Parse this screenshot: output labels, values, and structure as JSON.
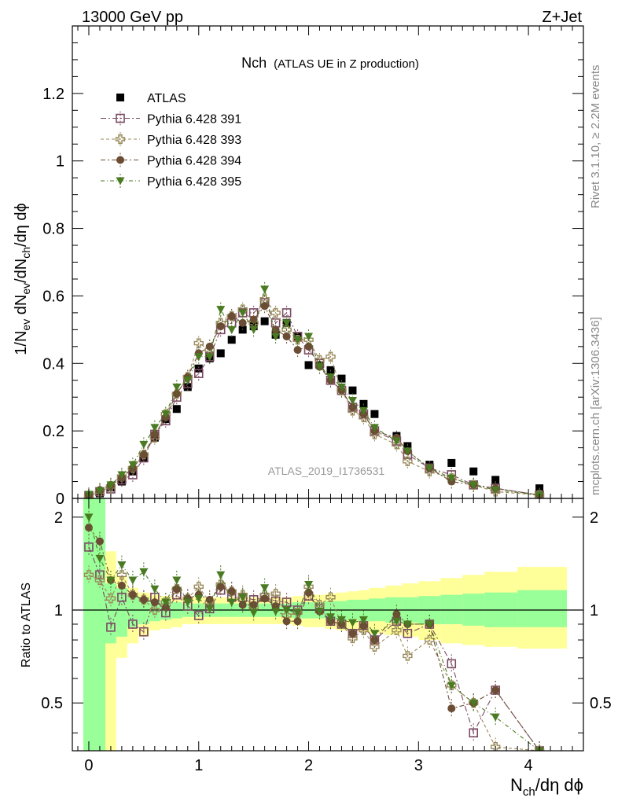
{
  "header": {
    "left": "13000 GeV pp",
    "right": "Z+Jet"
  },
  "side_labels": {
    "rivet": "Rivet 3.1.10, ≥ 2.2M events",
    "mcplots": "mcplots.cern.ch [arXiv:1306.3436]"
  },
  "chart_data": {
    "type": "scatter",
    "title_main": "Nch",
    "title_sub": "(ATLAS UE in Z production)",
    "watermark": "ATLAS_2019_I1736531",
    "xlabel": {
      "base": "N",
      "sub": "ch",
      "rest": "/dη dϕ"
    },
    "ylabel": {
      "parts": [
        "1/N",
        "ev",
        " dN",
        "ev",
        "/dN",
        "ch",
        "/dη dϕ"
      ]
    },
    "ratio_ylabel": "Ratio to ATLAS",
    "xlim": [
      -0.15,
      4.5
    ],
    "ylim": [
      0,
      1.4
    ],
    "ratio_ylim": [
      0.35,
      2.3
    ],
    "grid": false,
    "legend_position": "top-left",
    "x_ticks": [
      "0",
      "1",
      "2",
      "3",
      "4"
    ],
    "y_ticks": [
      "0",
      "0.2",
      "0.4",
      "0.6",
      "0.8",
      "1",
      "1.2"
    ],
    "ratio_ticks": [
      "0.5",
      "1",
      "2"
    ],
    "x": [
      0.0,
      0.1,
      0.2,
      0.3,
      0.4,
      0.5,
      0.6,
      0.7,
      0.8,
      0.9,
      1.0,
      1.1,
      1.2,
      1.3,
      1.4,
      1.5,
      1.6,
      1.7,
      1.8,
      1.9,
      2.0,
      2.1,
      2.2,
      2.3,
      2.4,
      2.5,
      2.6,
      2.8,
      2.9,
      3.1,
      3.3,
      3.5,
      3.7,
      4.1
    ],
    "series": [
      {
        "name": "ATLAS",
        "marker": "square-filled",
        "color": "#000000",
        "values": [
          0.005,
          0.015,
          0.032,
          0.05,
          0.08,
          0.12,
          0.18,
          0.235,
          0.265,
          0.33,
          0.385,
          0.415,
          0.43,
          0.47,
          0.5,
          0.51,
          0.525,
          0.485,
          0.52,
          0.48,
          0.395,
          0.395,
          0.38,
          0.355,
          0.32,
          0.28,
          0.25,
          0.185,
          0.155,
          0.1,
          0.105,
          0.08,
          0.055,
          0.03
        ]
      },
      {
        "name": "Pythia 6.428 391",
        "marker": "square-open",
        "color": "#7b4a63",
        "values": [
          0.008,
          0.02,
          0.028,
          0.055,
          0.07,
          0.12,
          0.19,
          0.23,
          0.3,
          0.34,
          0.37,
          0.42,
          0.5,
          0.52,
          0.55,
          0.55,
          0.58,
          0.52,
          0.55,
          0.48,
          0.44,
          0.4,
          0.35,
          0.32,
          0.27,
          0.25,
          0.2,
          0.17,
          0.13,
          0.09,
          0.07,
          0.04,
          0.03,
          0.01
        ]
      },
      {
        "name": "Pythia 6.428 393",
        "marker": "cross-open",
        "color": "#9a8a5a",
        "values": [
          0.006,
          0.02,
          0.035,
          0.065,
          0.09,
          0.13,
          0.18,
          0.25,
          0.31,
          0.36,
          0.46,
          0.44,
          0.52,
          0.54,
          0.56,
          0.52,
          0.59,
          0.55,
          0.5,
          0.47,
          0.47,
          0.41,
          0.42,
          0.32,
          0.26,
          0.24,
          0.19,
          0.16,
          0.11,
          0.08,
          0.06,
          0.04,
          0.02,
          0.01
        ]
      },
      {
        "name": "Pythia 6.428 394",
        "marker": "circle-filled",
        "color": "#6b4c34",
        "values": [
          0.01,
          0.025,
          0.04,
          0.06,
          0.09,
          0.13,
          0.19,
          0.24,
          0.31,
          0.36,
          0.43,
          0.45,
          0.51,
          0.54,
          0.52,
          0.53,
          0.57,
          0.5,
          0.48,
          0.44,
          0.45,
          0.39,
          0.35,
          0.32,
          0.27,
          0.25,
          0.2,
          0.18,
          0.14,
          0.09,
          0.05,
          0.04,
          0.03,
          0.01
        ]
      },
      {
        "name": "Pythia 6.428 395",
        "marker": "triangle-down-filled",
        "color": "#4a7a22",
        "values": [
          0.012,
          0.022,
          0.04,
          0.07,
          0.1,
          0.16,
          0.21,
          0.25,
          0.33,
          0.35,
          0.42,
          0.42,
          0.56,
          0.5,
          0.55,
          0.5,
          0.62,
          0.48,
          0.52,
          0.47,
          0.48,
          0.39,
          0.36,
          0.33,
          0.29,
          0.26,
          0.21,
          0.17,
          0.14,
          0.09,
          0.06,
          0.04,
          0.025,
          0.01
        ]
      }
    ],
    "ratio_series": [
      {
        "name": "Pythia 6.428 391",
        "values": [
          1.6,
          1.3,
          0.88,
          1.1,
          0.9,
          0.85,
          1.1,
          0.98,
          1.12,
          1.03,
          0.96,
          1.01,
          1.16,
          1.1,
          1.1,
          1.08,
          1.1,
          1.07,
          1.06,
          1.0,
          1.11,
          1.01,
          0.92,
          0.9,
          0.84,
          0.89,
          0.8,
          0.92,
          0.84,
          0.9,
          0.67,
          0.4,
          0.55,
          0.33
        ]
      },
      {
        "name": "Pythia 6.428 393",
        "values": [
          1.3,
          1.25,
          1.09,
          1.3,
          1.12,
          1.08,
          1.0,
          1.06,
          1.17,
          1.09,
          1.19,
          1.06,
          1.21,
          1.15,
          1.12,
          1.02,
          1.12,
          1.13,
          0.96,
          0.98,
          1.19,
          1.04,
          1.1,
          0.9,
          0.81,
          0.86,
          0.76,
          0.86,
          0.71,
          0.8,
          0.57,
          0.5,
          0.36,
          0.33
        ]
      },
      {
        "name": "Pythia 6.428 394",
        "values": [
          1.85,
          1.67,
          1.25,
          1.2,
          1.12,
          1.08,
          1.06,
          1.02,
          1.17,
          1.09,
          1.12,
          1.08,
          1.19,
          1.15,
          1.04,
          1.04,
          1.09,
          1.03,
          0.92,
          0.92,
          1.14,
          0.99,
          0.92,
          0.9,
          0.84,
          0.89,
          0.8,
          0.97,
          0.9,
          0.9,
          0.48,
          0.5,
          0.55,
          0.33
        ]
      },
      {
        "name": "Pythia 6.428 395",
        "values": [
          2.0,
          1.47,
          1.25,
          1.4,
          1.25,
          1.33,
          1.17,
          1.06,
          1.25,
          1.06,
          1.09,
          1.01,
          1.3,
          1.06,
          1.1,
          0.98,
          1.18,
          0.99,
          1.0,
          0.98,
          1.21,
          0.99,
          0.95,
          0.93,
          0.91,
          0.93,
          0.84,
          0.92,
          0.9,
          0.9,
          0.57,
          0.5,
          0.45,
          0.33
        ]
      }
    ],
    "ratio_bands": {
      "x_edges": [
        -0.05,
        0.05,
        0.15,
        0.25,
        0.35,
        0.45,
        0.55,
        0.65,
        0.75,
        0.85,
        0.95,
        1.05,
        1.15,
        1.25,
        1.35,
        1.45,
        1.55,
        1.65,
        1.75,
        1.85,
        1.95,
        2.05,
        2.15,
        2.25,
        2.35,
        2.45,
        2.55,
        2.7,
        2.85,
        3.0,
        3.2,
        3.4,
        3.6,
        3.9,
        4.35
      ],
      "green_lo": [
        0.3,
        0.3,
        0.78,
        0.82,
        0.88,
        0.9,
        0.92,
        0.93,
        0.94,
        0.95,
        0.95,
        0.95,
        0.95,
        0.95,
        0.95,
        0.95,
        0.95,
        0.95,
        0.95,
        0.94,
        0.94,
        0.94,
        0.93,
        0.93,
        0.93,
        0.92,
        0.92,
        0.91,
        0.91,
        0.9,
        0.9,
        0.89,
        0.88,
        0.88
      ],
      "green_hi": [
        2.3,
        2.3,
        1.22,
        1.18,
        1.12,
        1.1,
        1.08,
        1.07,
        1.06,
        1.05,
        1.05,
        1.05,
        1.05,
        1.05,
        1.05,
        1.05,
        1.05,
        1.05,
        1.05,
        1.06,
        1.06,
        1.06,
        1.07,
        1.07,
        1.08,
        1.08,
        1.09,
        1.1,
        1.1,
        1.11,
        1.12,
        1.13,
        1.14,
        1.16
      ],
      "yellow_lo": [
        0.3,
        0.3,
        0.35,
        0.7,
        0.78,
        0.82,
        0.86,
        0.87,
        0.88,
        0.9,
        0.9,
        0.9,
        0.9,
        0.9,
        0.9,
        0.9,
        0.9,
        0.9,
        0.9,
        0.89,
        0.88,
        0.88,
        0.87,
        0.86,
        0.86,
        0.85,
        0.84,
        0.83,
        0.82,
        0.8,
        0.78,
        0.77,
        0.76,
        0.75
      ],
      "yellow_hi": [
        2.3,
        2.3,
        1.55,
        1.28,
        1.18,
        1.14,
        1.12,
        1.11,
        1.1,
        1.1,
        1.1,
        1.1,
        1.1,
        1.1,
        1.1,
        1.1,
        1.1,
        1.1,
        1.1,
        1.11,
        1.12,
        1.12,
        1.13,
        1.14,
        1.15,
        1.16,
        1.18,
        1.2,
        1.22,
        1.24,
        1.27,
        1.3,
        1.33,
        1.38
      ],
      "green_color": "#99ff99",
      "yellow_color": "#ffff99"
    }
  }
}
